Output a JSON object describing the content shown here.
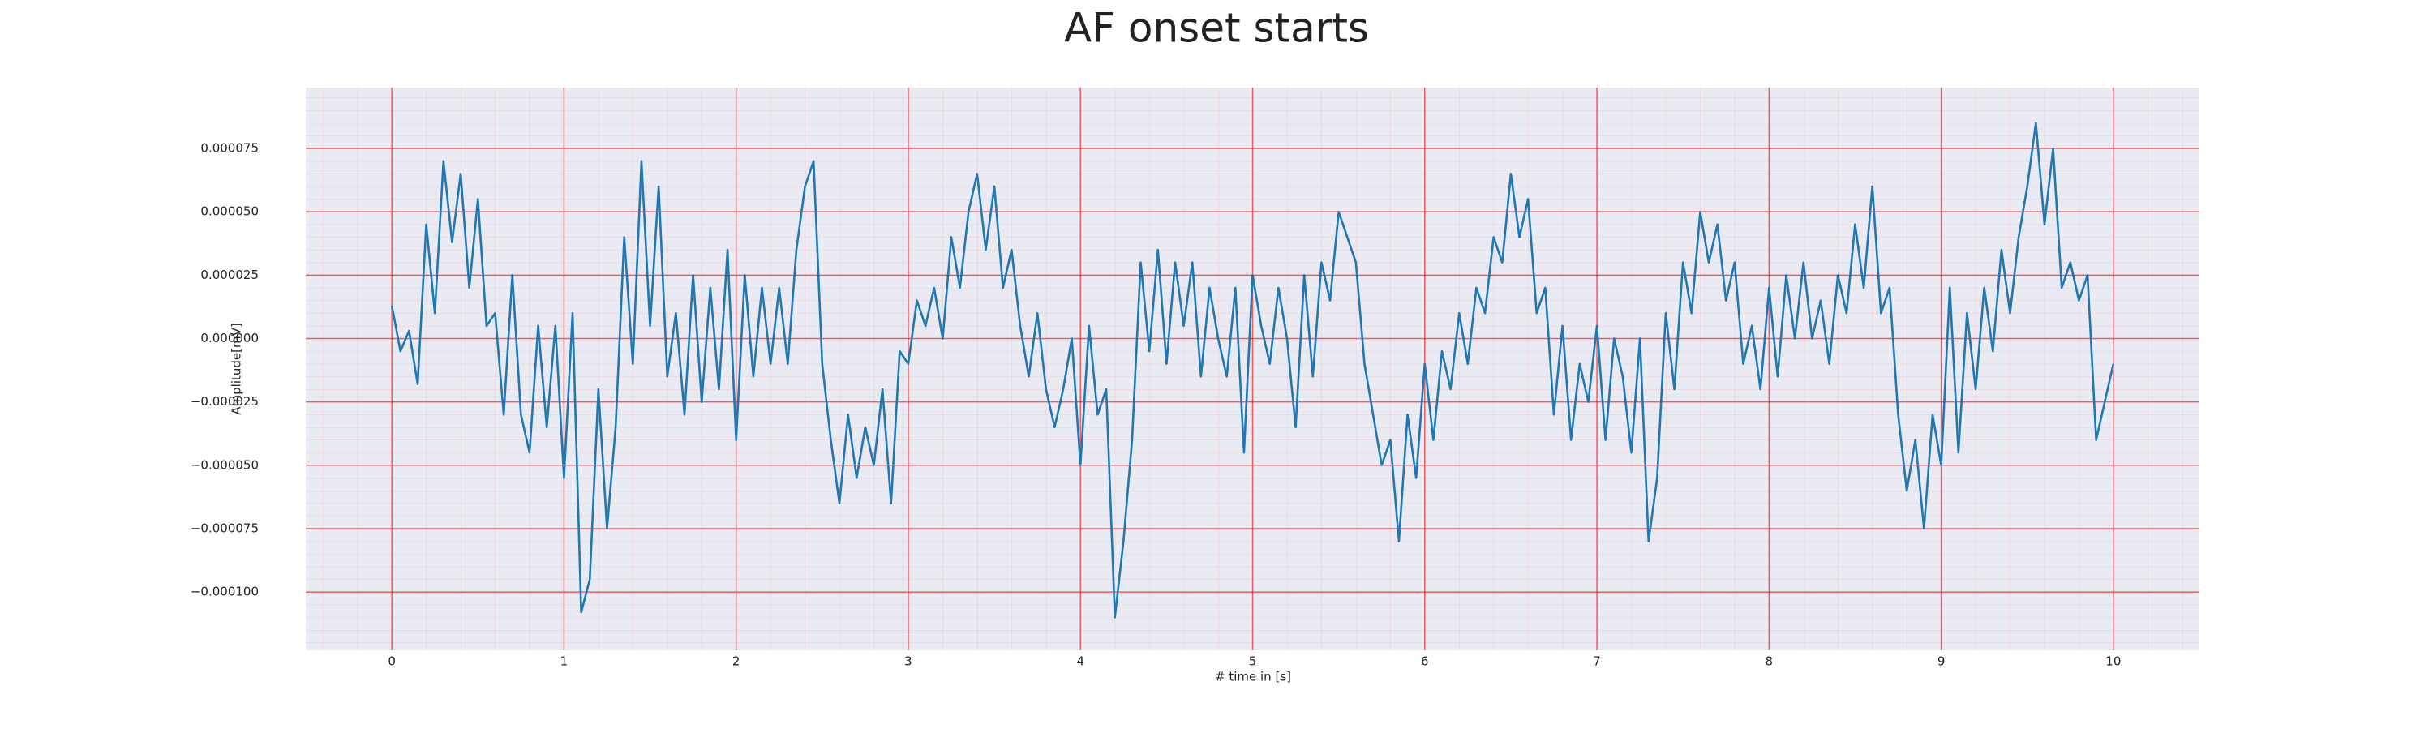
{
  "chart_data": {
    "type": "line",
    "title": "AF onset starts",
    "xlabel": "# time in [s]",
    "ylabel": "Amplitude[mV]",
    "x": [
      0,
      0.05,
      0.1,
      0.15,
      0.2,
      0.25,
      0.3,
      0.35,
      0.4,
      0.45,
      0.5,
      0.55,
      0.6,
      0.65,
      0.7,
      0.75,
      0.8,
      0.85,
      0.9,
      0.95,
      1,
      1.05,
      1.1,
      1.15,
      1.2,
      1.25,
      1.3,
      1.35,
      1.4,
      1.45,
      1.5,
      1.55,
      1.6,
      1.65,
      1.7,
      1.75,
      1.8,
      1.85,
      1.9,
      1.95,
      2,
      2.05,
      2.1,
      2.15,
      2.2,
      2.25,
      2.3,
      2.35,
      2.4,
      2.45,
      2.5,
      2.55,
      2.6,
      2.65,
      2.7,
      2.75,
      2.8,
      2.85,
      2.9,
      2.95,
      3,
      3.05,
      3.1,
      3.15,
      3.2,
      3.25,
      3.3,
      3.35,
      3.4,
      3.45,
      3.5,
      3.55,
      3.6,
      3.65,
      3.7,
      3.75,
      3.8,
      3.85,
      3.9,
      3.95,
      4,
      4.05,
      4.1,
      4.15,
      4.2,
      4.25,
      4.3,
      4.35,
      4.4,
      4.45,
      4.5,
      4.55,
      4.6,
      4.65,
      4.7,
      4.75,
      4.8,
      4.85,
      4.9,
      4.95,
      5,
      5.05,
      5.1,
      5.15,
      5.2,
      5.25,
      5.3,
      5.35,
      5.4,
      5.45,
      5.5,
      5.55,
      5.6,
      5.65,
      5.7,
      5.75,
      5.8,
      5.85,
      5.9,
      5.95,
      6,
      6.05,
      6.1,
      6.15,
      6.2,
      6.25,
      6.3,
      6.35,
      6.4,
      6.45,
      6.5,
      6.55,
      6.6,
      6.65,
      6.7,
      6.75,
      6.8,
      6.85,
      6.9,
      6.95,
      7,
      7.05,
      7.1,
      7.15,
      7.2,
      7.25,
      7.3,
      7.35,
      7.4,
      7.45,
      7.5,
      7.55,
      7.6,
      7.65,
      7.7,
      7.75,
      7.8,
      7.85,
      7.9,
      7.95,
      8,
      8.05,
      8.1,
      8.15,
      8.2,
      8.25,
      8.3,
      8.35,
      8.4,
      8.45,
      8.5,
      8.55,
      8.6,
      8.65,
      8.7,
      8.75,
      8.8,
      8.85,
      8.9,
      8.95,
      9,
      9.05,
      9.1,
      9.15,
      9.2,
      9.25,
      9.3,
      9.35,
      9.4,
      9.45,
      9.5,
      9.55,
      9.6,
      9.65,
      9.7,
      9.75,
      9.8,
      9.85,
      9.9,
      9.95,
      10
    ],
    "series": [
      {
        "color": "#1f77b4",
        "values": [
          1.3e-05,
          -5e-06,
          3e-06,
          -1.8e-05,
          4.5e-05,
          1e-05,
          7e-05,
          3.8e-05,
          6.5e-05,
          2e-05,
          5.5e-05,
          5e-06,
          1e-05,
          -3e-05,
          2.5e-05,
          -3e-05,
          -4.5e-05,
          5e-06,
          -3.5e-05,
          5e-06,
          -5.5e-05,
          1e-05,
          -0.000108,
          -9.5e-05,
          -2e-05,
          -7.5e-05,
          -3.5e-05,
          4e-05,
          -1e-05,
          7e-05,
          5e-06,
          6e-05,
          -1.5e-05,
          1e-05,
          -3e-05,
          2.5e-05,
          -2.5e-05,
          2e-05,
          -2e-05,
          3.5e-05,
          -4e-05,
          2.5e-05,
          -1.5e-05,
          2e-05,
          -1e-05,
          2e-05,
          -1e-05,
          3.5e-05,
          6e-05,
          7e-05,
          -1e-05,
          -4e-05,
          -6.5e-05,
          -3e-05,
          -5.5e-05,
          -3.5e-05,
          -5e-05,
          -2e-05,
          -6.5e-05,
          -5e-06,
          -1e-05,
          1.5e-05,
          5e-06,
          2e-05,
          0,
          4e-05,
          2e-05,
          5e-05,
          6.5e-05,
          3.5e-05,
          6e-05,
          2e-05,
          3.5e-05,
          5e-06,
          -1.5e-05,
          1e-05,
          -2e-05,
          -3.5e-05,
          -2e-05,
          0,
          -5e-05,
          5e-06,
          -3e-05,
          -2e-05,
          -0.00011,
          -8e-05,
          -4e-05,
          3e-05,
          -5e-06,
          3.5e-05,
          -1e-05,
          3e-05,
          5e-06,
          3e-05,
          -1.5e-05,
          2e-05,
          0,
          -1.5e-05,
          2e-05,
          -4.5e-05,
          2.5e-05,
          5e-06,
          -1e-05,
          2e-05,
          0,
          -3.5e-05,
          2.5e-05,
          -1.5e-05,
          3e-05,
          1.5e-05,
          5e-05,
          4e-05,
          3e-05,
          -1e-05,
          -3e-05,
          -5e-05,
          -4e-05,
          -8e-05,
          -3e-05,
          -5.5e-05,
          -1e-05,
          -4e-05,
          -5e-06,
          -2e-05,
          1e-05,
          -1e-05,
          2e-05,
          1e-05,
          4e-05,
          3e-05,
          6.5e-05,
          4e-05,
          5.5e-05,
          1e-05,
          2e-05,
          -3e-05,
          5e-06,
          -4e-05,
          -1e-05,
          -2.5e-05,
          5e-06,
          -4e-05,
          0,
          -1.5e-05,
          -4.5e-05,
          0,
          -8e-05,
          -5.5e-05,
          1e-05,
          -2e-05,
          3e-05,
          1e-05,
          5e-05,
          3e-05,
          4.5e-05,
          1.5e-05,
          3e-05,
          -1e-05,
          5e-06,
          -2e-05,
          2e-05,
          -1.5e-05,
          2.5e-05,
          0,
          3e-05,
          0,
          1.5e-05,
          -1e-05,
          2.5e-05,
          1e-05,
          4.5e-05,
          2e-05,
          6e-05,
          1e-05,
          2e-05,
          -3e-05,
          -6e-05,
          -4e-05,
          -7.5e-05,
          -3e-05,
          -5e-05,
          2e-05,
          -4.5e-05,
          1e-05,
          -2e-05,
          2e-05,
          -5e-06,
          3.5e-05,
          1e-05,
          4e-05,
          6e-05,
          8.5e-05,
          4.5e-05,
          7.5e-05,
          2e-05,
          3e-05,
          1.5e-05,
          2.5e-05,
          -4e-05,
          -2.5e-05,
          -1e-05
        ]
      }
    ],
    "xlim": [
      -0.5,
      10.5
    ],
    "xticks": [
      0,
      1,
      2,
      3,
      4,
      5,
      6,
      7,
      8,
      9,
      10
    ],
    "ylim": [
      -0.000123,
      9.9e-05
    ],
    "yticks": [
      {
        "value": -0.0001,
        "label": "−0.000100"
      },
      {
        "value": -7.5e-05,
        "label": "−0.000075"
      },
      {
        "value": -5e-05,
        "label": "−0.000050"
      },
      {
        "value": -2.5e-05,
        "label": "−0.000025"
      },
      {
        "value": 0,
        "label": "0.000000"
      },
      {
        "value": 2.5e-05,
        "label": "0.000025"
      },
      {
        "value": 5e-05,
        "label": "0.000050"
      },
      {
        "value": 7.5e-05,
        "label": "0.000075"
      }
    ],
    "grid": true,
    "grid_color": "#ff0000",
    "background": "#eaeaf2"
  }
}
